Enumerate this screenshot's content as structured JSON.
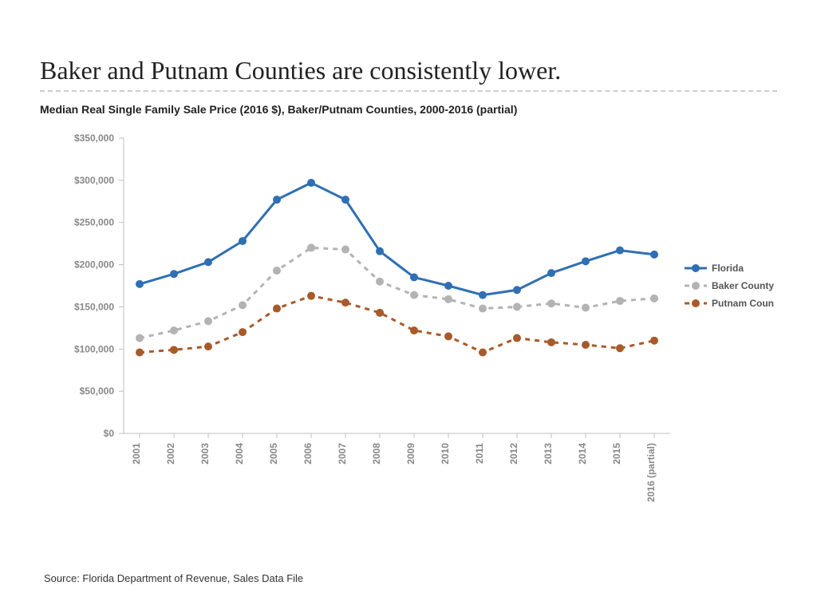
{
  "title": "Baker and Putnam Counties are consistently lower.",
  "subtitle": "Median Real Single Family Sale Price (2016 $), Baker/Putnam Counties, 2000-2016 (partial)",
  "source": "Source: Florida Department of Revenue, Sales Data File",
  "chart": {
    "type": "line",
    "background_color": "#ffffff",
    "grid_color": "#dcdcdc",
    "axis_color": "#bfbfbf",
    "tick_font_size": 12,
    "tick_font_weight": "bold",
    "tick_color": "#888888",
    "y": {
      "min": 0,
      "max": 350000,
      "tick_step": 50000,
      "ticks": [
        "$0",
        "$50,000",
        "$100,000",
        "$150,000",
        "$200,000",
        "$250,000",
        "$300,000",
        "$350,000"
      ]
    },
    "x": {
      "categories": [
        "2001",
        "2002",
        "2003",
        "2004",
        "2005",
        "2006",
        "2007",
        "2008",
        "2009",
        "2010",
        "2011",
        "2012",
        "2013",
        "2014",
        "2015",
        "2016 (partial)"
      ]
    },
    "series": [
      {
        "name": "Florida",
        "color": "#2f6fb3",
        "line_width": 3,
        "dash": "none",
        "marker": "circle",
        "marker_size": 5,
        "values": [
          177000,
          189000,
          203000,
          228000,
          277000,
          297000,
          277000,
          216000,
          185000,
          175000,
          164000,
          170000,
          190000,
          204000,
          217000,
          212000
        ]
      },
      {
        "name": "Baker County",
        "color": "#b3b3b3",
        "line_width": 3,
        "dash": "6,6",
        "marker": "circle",
        "marker_size": 5,
        "values": [
          113000,
          122000,
          133000,
          152000,
          193000,
          220000,
          218000,
          180000,
          164000,
          159000,
          148000,
          150000,
          154000,
          149000,
          157000,
          160000
        ]
      },
      {
        "name": "Putnam County",
        "color": "#a85a2a",
        "line_width": 3,
        "dash": "6,6",
        "marker": "circle",
        "marker_size": 5,
        "values": [
          96000,
          99000,
          103000,
          120000,
          148000,
          163000,
          155000,
          143000,
          122000,
          115000,
          96000,
          113000,
          108000,
          105000,
          101000,
          110000
        ]
      }
    ],
    "legend": {
      "position": "right",
      "items": [
        "Florida",
        "Baker County",
        "Putnam County"
      ]
    }
  }
}
